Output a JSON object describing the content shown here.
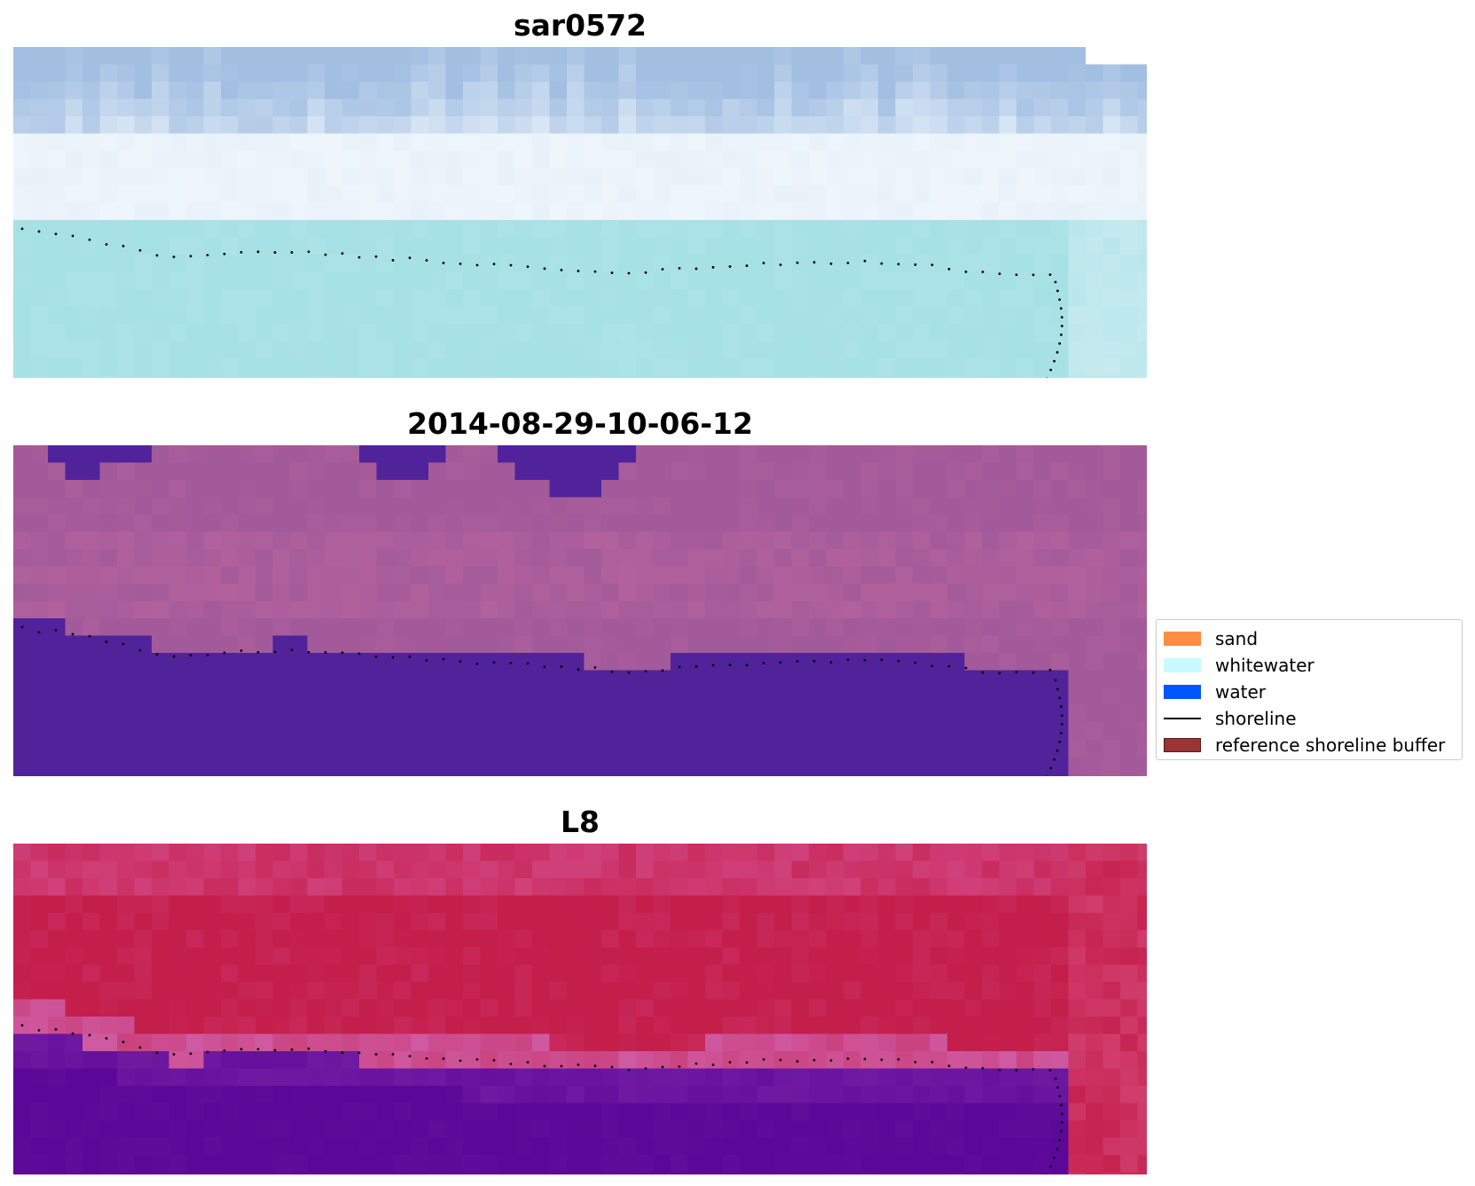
{
  "panels": [
    {
      "id": "rgb",
      "title": "sar0572"
    },
    {
      "id": "classification",
      "title": "2014-08-29-10-06-12"
    },
    {
      "id": "index",
      "title": "L8"
    }
  ],
  "legend": {
    "items": [
      {
        "label": "sand",
        "kind": "patch",
        "color": "#ff8c42"
      },
      {
        "label": "whitewater",
        "kind": "patch",
        "color": "#c8fbff"
      },
      {
        "label": "water",
        "kind": "patch",
        "color": "#0057ff"
      },
      {
        "label": "shoreline",
        "kind": "line",
        "color": "#000000"
      },
      {
        "label": "reference shoreline buffer",
        "kind": "patch",
        "color": "#9a3333"
      }
    ]
  },
  "colors": {
    "rgb_sky": "#a2bfe2",
    "rgb_foam": "#eef6fb",
    "rgb_sea": "#a6e1e6",
    "class_land": "#a35a9a",
    "class_water": "#51239a",
    "index_land": "#c41e4b",
    "index_water": "#5b0898",
    "shoreline_points": "#000000"
  }
}
